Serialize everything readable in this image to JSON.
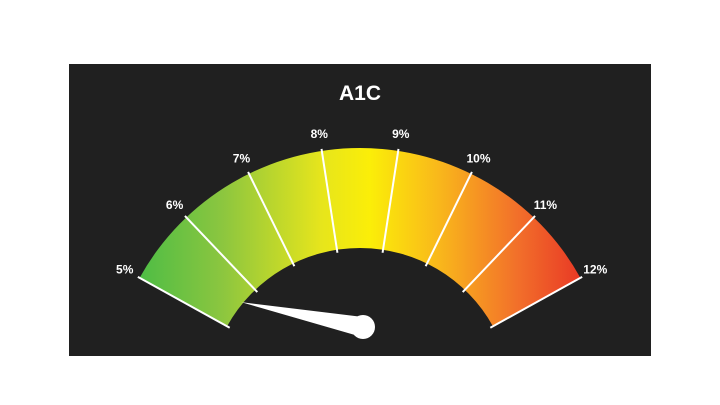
{
  "gauge": {
    "title": "A1C",
    "min": 5,
    "max": 12,
    "value": 5.6,
    "tick_labels": [
      "5%",
      "6%",
      "7%",
      "8%",
      "9%",
      "10%",
      "11%",
      "12%"
    ],
    "gradient_colors": [
      "#3cba47",
      "#a8cf3a",
      "#f5e80a",
      "#f9b81b",
      "#f2702a",
      "#e52424"
    ],
    "background_color": "#202020",
    "text_color": "#ffffff"
  }
}
